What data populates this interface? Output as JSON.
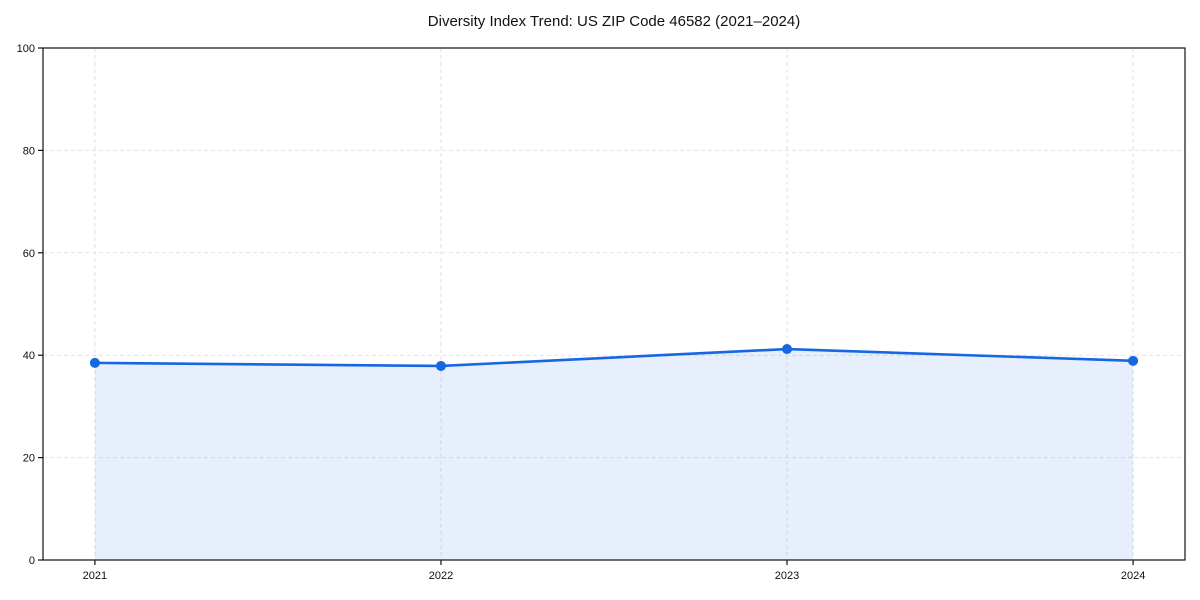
{
  "title": "Diversity Index Trend: US ZIP Code 46582 (2021–2024)",
  "chart_data": {
    "type": "area",
    "title": "Diversity Index Trend: US ZIP Code 46582 (2021–2024)",
    "xlabel": "",
    "ylabel": "",
    "x": [
      2021,
      2022,
      2023,
      2024
    ],
    "categories": [
      "2021",
      "2022",
      "2023",
      "2024"
    ],
    "series": [
      {
        "name": "Diversity Index",
        "values": [
          38.5,
          37.9,
          41.2,
          38.9
        ]
      }
    ],
    "xlim": [
      2020.85,
      2024.15
    ],
    "ylim": [
      0,
      100
    ],
    "xticks": [
      2021,
      2022,
      2023,
      2024
    ],
    "xtick_labels": [
      "2021",
      "2022",
      "2023",
      "2024"
    ],
    "yticks": [
      0,
      20,
      40,
      60,
      80,
      100
    ],
    "ytick_labels": [
      "0",
      "20",
      "40",
      "60",
      "80",
      "100"
    ],
    "grid": true,
    "grid_style": "dashed",
    "legend": false,
    "colors": {
      "line": "#1766e2",
      "marker": "#1766e2",
      "fill": "rgba(23, 102, 226, 0.10)",
      "grid": "#e2e2e2",
      "spine": "#111111",
      "text": "#111111",
      "background": "#ffffff"
    }
  }
}
